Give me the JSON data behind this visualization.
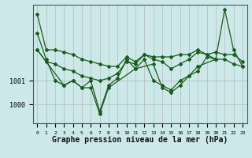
{
  "background_color": "#cce8e8",
  "line_color": "#1a5c1a",
  "grid_color": "#b0b0b0",
  "xlabel": "Graphe pression niveau de la mer (hPa)",
  "xlabel_fontsize": 7,
  "x_ticks": [
    0,
    1,
    2,
    3,
    4,
    5,
    6,
    7,
    8,
    9,
    10,
    11,
    12,
    13,
    14,
    15,
    16,
    17,
    18,
    19,
    20,
    21,
    22,
    23
  ],
  "ylim": [
    999.2,
    1004.2
  ],
  "yticks": [
    1000,
    1001
  ],
  "figsize": [
    3.2,
    2.0
  ],
  "dpi": 100,
  "s1": [
    1003.8,
    1002.3,
    1002.3,
    1002.2,
    1002.1,
    1001.9,
    1001.8,
    1001.7,
    1001.6,
    1001.6,
    1002.0,
    1001.8,
    1002.1,
    1002.0,
    1002.0,
    1002.0,
    1002.1,
    1002.1,
    1002.3,
    1002.1,
    1002.2,
    1002.1,
    1002.1,
    1001.8
  ],
  "s2": [
    1002.3,
    1001.8,
    1001.7,
    1001.5,
    1001.4,
    1001.2,
    1001.1,
    1001.0,
    1001.1,
    1001.3,
    1001.8,
    1001.7,
    1002.1,
    1001.9,
    1001.8,
    1001.5,
    1001.7,
    1001.9,
    1002.2,
    1002.1,
    1001.9,
    1001.9,
    1001.7,
    1001.6
  ],
  "s3": [
    1003.0,
    1001.9,
    1001.0,
    1000.8,
    1001.0,
    1000.7,
    1001.0,
    999.7,
    1000.8,
    1001.1,
    1001.9,
    1001.5,
    1001.9,
    1001.0,
    1000.8,
    1000.6,
    1001.0,
    1001.2,
    1001.4,
    1002.0,
    1001.9,
    1004.0,
    1002.3,
    1001.6
  ],
  "s4_x": [
    0,
    3,
    4,
    5,
    6,
    7,
    8,
    11,
    13,
    14,
    15,
    16,
    17,
    18,
    20
  ],
  "s4_y": [
    1002.3,
    1000.8,
    1001.0,
    1000.7,
    1000.7,
    999.6,
    1000.7,
    1001.5,
    1001.7,
    1000.7,
    1000.5,
    1000.8,
    1001.2,
    1001.6,
    1001.9
  ]
}
